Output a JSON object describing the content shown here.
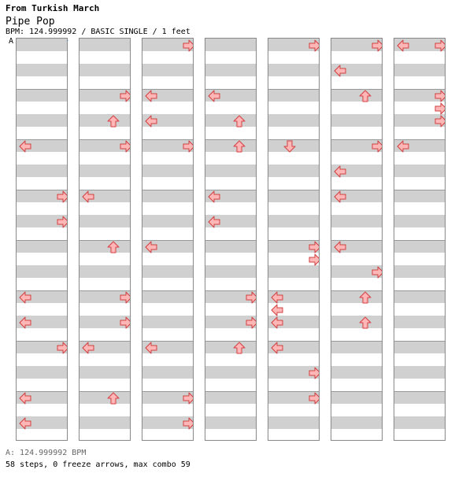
{
  "header": {
    "song": "From Turkish March",
    "title": "Pipe Pop",
    "meta": "BPM: 124.999992 / BASIC SINGLE / 1 feet"
  },
  "bpm_marker": "A",
  "footer": {
    "bpm": "A: 124.999992 BPM",
    "stats": "58 steps, 0 freeze arrows, max combo 59"
  },
  "colors": {
    "band": "#d0d0d0",
    "arrow_fill": "#ffb6b6",
    "arrow_stroke": "#d04040"
  },
  "chart": {
    "columns": 7,
    "rows_per_column": 16,
    "arrows": [
      {
        "col": 0,
        "row": 4,
        "dir": "left"
      },
      {
        "col": 0,
        "row": 6,
        "dir": "right"
      },
      {
        "col": 0,
        "row": 7,
        "dir": "right"
      },
      {
        "col": 0,
        "row": 10,
        "dir": "left"
      },
      {
        "col": 0,
        "row": 11,
        "dir": "left"
      },
      {
        "col": 0,
        "row": 12,
        "dir": "right"
      },
      {
        "col": 0,
        "row": 14,
        "dir": "left"
      },
      {
        "col": 0,
        "row": 15,
        "dir": "left"
      },
      {
        "col": 1,
        "row": 2,
        "dir": "right"
      },
      {
        "col": 1,
        "row": 3,
        "dir": "up"
      },
      {
        "col": 1,
        "row": 4,
        "dir": "right"
      },
      {
        "col": 1,
        "row": 6,
        "dir": "left"
      },
      {
        "col": 1,
        "row": 8,
        "dir": "up"
      },
      {
        "col": 1,
        "row": 10,
        "dir": "right"
      },
      {
        "col": 1,
        "row": 11,
        "dir": "right"
      },
      {
        "col": 1,
        "row": 12,
        "dir": "left"
      },
      {
        "col": 1,
        "row": 14,
        "dir": "up"
      },
      {
        "col": 2,
        "row": 0,
        "dir": "right"
      },
      {
        "col": 2,
        "row": 2,
        "dir": "left"
      },
      {
        "col": 2,
        "row": 3,
        "dir": "left"
      },
      {
        "col": 2,
        "row": 4,
        "dir": "right"
      },
      {
        "col": 2,
        "row": 8,
        "dir": "left"
      },
      {
        "col": 2,
        "row": 12,
        "dir": "left"
      },
      {
        "col": 2,
        "row": 14,
        "dir": "right"
      },
      {
        "col": 2,
        "row": 15,
        "dir": "right"
      },
      {
        "col": 3,
        "row": 2,
        "dir": "left"
      },
      {
        "col": 3,
        "row": 3,
        "dir": "up"
      },
      {
        "col": 3,
        "row": 4,
        "dir": "up"
      },
      {
        "col": 3,
        "row": 6,
        "dir": "left"
      },
      {
        "col": 3,
        "row": 7,
        "dir": "left"
      },
      {
        "col": 3,
        "row": 10,
        "dir": "right"
      },
      {
        "col": 3,
        "row": 11,
        "dir": "right"
      },
      {
        "col": 3,
        "row": 12,
        "dir": "up"
      },
      {
        "col": 4,
        "row": 0,
        "dir": "right"
      },
      {
        "col": 4,
        "row": 4,
        "dir": "down"
      },
      {
        "col": 4,
        "row": 8,
        "dir": "right"
      },
      {
        "col": 4,
        "row": 8.5,
        "dir": "right"
      },
      {
        "col": 4,
        "row": 10,
        "dir": "left"
      },
      {
        "col": 4,
        "row": 10.5,
        "dir": "left"
      },
      {
        "col": 4,
        "row": 11,
        "dir": "left"
      },
      {
        "col": 4,
        "row": 12,
        "dir": "left"
      },
      {
        "col": 4,
        "row": 13,
        "dir": "right"
      },
      {
        "col": 4,
        "row": 14,
        "dir": "right"
      },
      {
        "col": 5,
        "row": 0,
        "dir": "right"
      },
      {
        "col": 5,
        "row": 1,
        "dir": "left"
      },
      {
        "col": 5,
        "row": 2,
        "dir": "up"
      },
      {
        "col": 5,
        "row": 4,
        "dir": "right"
      },
      {
        "col": 5,
        "row": 5,
        "dir": "left"
      },
      {
        "col": 5,
        "row": 6,
        "dir": "left"
      },
      {
        "col": 5,
        "row": 8,
        "dir": "left"
      },
      {
        "col": 5,
        "row": 9,
        "dir": "right"
      },
      {
        "col": 5,
        "row": 10,
        "dir": "up"
      },
      {
        "col": 5,
        "row": 11,
        "dir": "up"
      },
      {
        "col": 6,
        "row": 0,
        "dir": "left"
      },
      {
        "col": 6,
        "row": 0,
        "dir": "right"
      },
      {
        "col": 6,
        "row": 2,
        "dir": "right"
      },
      {
        "col": 6,
        "row": 2.5,
        "dir": "right"
      },
      {
        "col": 6,
        "row": 3,
        "dir": "right"
      },
      {
        "col": 6,
        "row": 4,
        "dir": "left"
      }
    ]
  }
}
